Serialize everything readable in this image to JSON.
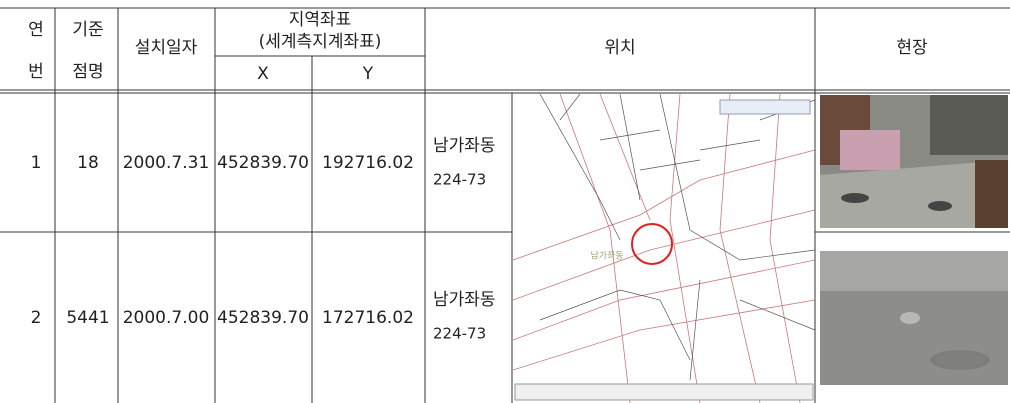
{
  "table": {
    "header": {
      "no": [
        "연",
        "번"
      ],
      "point": [
        "기준",
        "점명"
      ],
      "date": "설치일자",
      "coord": [
        "지역좌표",
        "(세계측지계좌표)"
      ],
      "x": "X",
      "y": "Y",
      "location": "위치",
      "site": "현장"
    },
    "rows": [
      [
        "1",
        "18",
        "2000.7.31",
        "452839.70",
        "192716.02",
        "남가좌동",
        "224-73"
      ],
      [
        "2",
        "5441",
        "2000.7.00",
        "452839.70",
        "172716.02",
        "남가좌동",
        "224-73"
      ]
    ],
    "map_label": "남가좌동"
  }
}
